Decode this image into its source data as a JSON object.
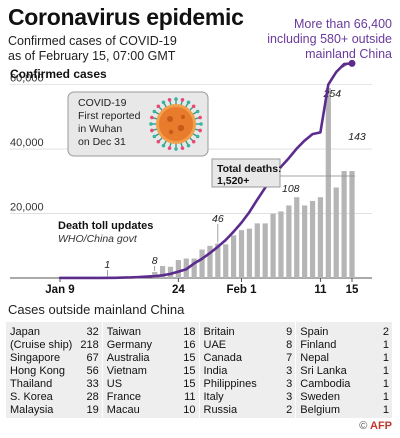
{
  "title": "Coronavirus epidemic",
  "subtitle_line1": "Confirmed cases of COVID-19",
  "subtitle_line2": "as of February 15, 07:00 GMT",
  "callout_line1": "More than 66,400",
  "callout_line2": "including 580+ outside",
  "callout_line3": "mainland China",
  "covid_note": [
    "COVID-19",
    "First reported",
    "in Wuhan",
    "on Dec 31"
  ],
  "deaths_label_line1": "Total deaths:",
  "deaths_label_line2": "1,520+",
  "death_toll_title": "Death toll updates",
  "death_toll_source": "WHO/China govt",
  "chart_data": {
    "type": "line",
    "ylabel": "Confirmed cases",
    "ylim": [
      0,
      66400
    ],
    "yticks": [
      0,
      20000,
      40000,
      60000
    ],
    "ytick_labels": [
      "",
      "20,000",
      "40,000",
      "60,000"
    ],
    "xticks": [
      "Jan 9",
      "24",
      "Feb 1",
      "11",
      "15"
    ],
    "xtick_day_index": [
      0,
      15,
      23,
      33,
      37
    ],
    "series": [
      {
        "role": "cases",
        "x_day_index": [
          0,
          3,
          5,
          7,
          9,
          10,
          11,
          12,
          13,
          14,
          15,
          16,
          17,
          18,
          19,
          20,
          21,
          22,
          23,
          24,
          25,
          26,
          27,
          28,
          29,
          30,
          31,
          32,
          33,
          34,
          35,
          36,
          37
        ],
        "values": [
          41,
          41,
          45,
          62,
          198,
          291,
          440,
          571,
          830,
          1287,
          1975,
          2744,
          4515,
          5974,
          7711,
          9692,
          11791,
          14380,
          17205,
          20438,
          24324,
          28018,
          31161,
          34546,
          37198,
          40171,
          42638,
          44653,
          45171,
          60000,
          63900,
          66400,
          66600
        ]
      },
      {
        "role": "deaths",
        "x_day_index": [
          2,
          3,
          4,
          5,
          6,
          7,
          8,
          9,
          10,
          11,
          12,
          13,
          14,
          15,
          16,
          17,
          18,
          19,
          20,
          21,
          22,
          23,
          24,
          25,
          26,
          27,
          28,
          29,
          30,
          31,
          32,
          33,
          34,
          35,
          36,
          37
        ],
        "values": [
          0,
          0,
          0,
          0,
          1,
          0,
          0,
          0,
          0,
          0,
          8,
          16,
          15,
          24,
          26,
          26,
          38,
          43,
          46,
          45,
          57,
          64,
          66,
          73,
          73,
          86,
          89,
          97,
          108,
          97,
          103,
          108,
          254,
          121,
          143,
          143
        ]
      }
    ],
    "death_labels": [
      {
        "day_index": 6,
        "text": "1"
      },
      {
        "day_index": 12,
        "text": "8"
      },
      {
        "day_index": 20,
        "text": "46"
      },
      {
        "day_index": 30,
        "text": "108"
      },
      {
        "day_index": 34,
        "text": "254"
      },
      {
        "day_index": 37,
        "text": "143"
      }
    ]
  },
  "table": {
    "title": "Cases outside mainland China",
    "columns": [
      [
        [
          "Japan",
          "32"
        ],
        [
          "(Cruise ship)",
          "218"
        ],
        [
          "Singapore",
          "67"
        ],
        [
          "Hong Kong",
          "56"
        ],
        [
          "Thailand",
          "33"
        ],
        [
          "S. Korea",
          "28"
        ],
        [
          "Malaysia",
          "19"
        ]
      ],
      [
        [
          "Taiwan",
          "18"
        ],
        [
          "Germany",
          "16"
        ],
        [
          "Australia",
          "15"
        ],
        [
          "Vietnam",
          "15"
        ],
        [
          "US",
          "15"
        ],
        [
          "France",
          "11"
        ],
        [
          "Macau",
          "10"
        ]
      ],
      [
        [
          "Britain",
          "9"
        ],
        [
          "UAE",
          "8"
        ],
        [
          "Canada",
          "7"
        ],
        [
          "India",
          "3"
        ],
        [
          "Philippines",
          "3"
        ],
        [
          "Italy",
          "3"
        ],
        [
          "Russia",
          "2"
        ]
      ],
      [
        [
          "Spain",
          "2"
        ],
        [
          "Finland",
          "1"
        ],
        [
          "Nepal",
          "1"
        ],
        [
          "Sri Lanka",
          "1"
        ],
        [
          "Cambodia",
          "1"
        ],
        [
          "Sweden",
          "1"
        ],
        [
          "Belgium",
          "1"
        ]
      ]
    ]
  },
  "credit": "AFP",
  "colors": {
    "line": "#5b2c8e",
    "bar": "#b5b5b5",
    "grid": "#dddddd",
    "callout": "#6a3a9c",
    "table_bg": "#eeeeee"
  }
}
